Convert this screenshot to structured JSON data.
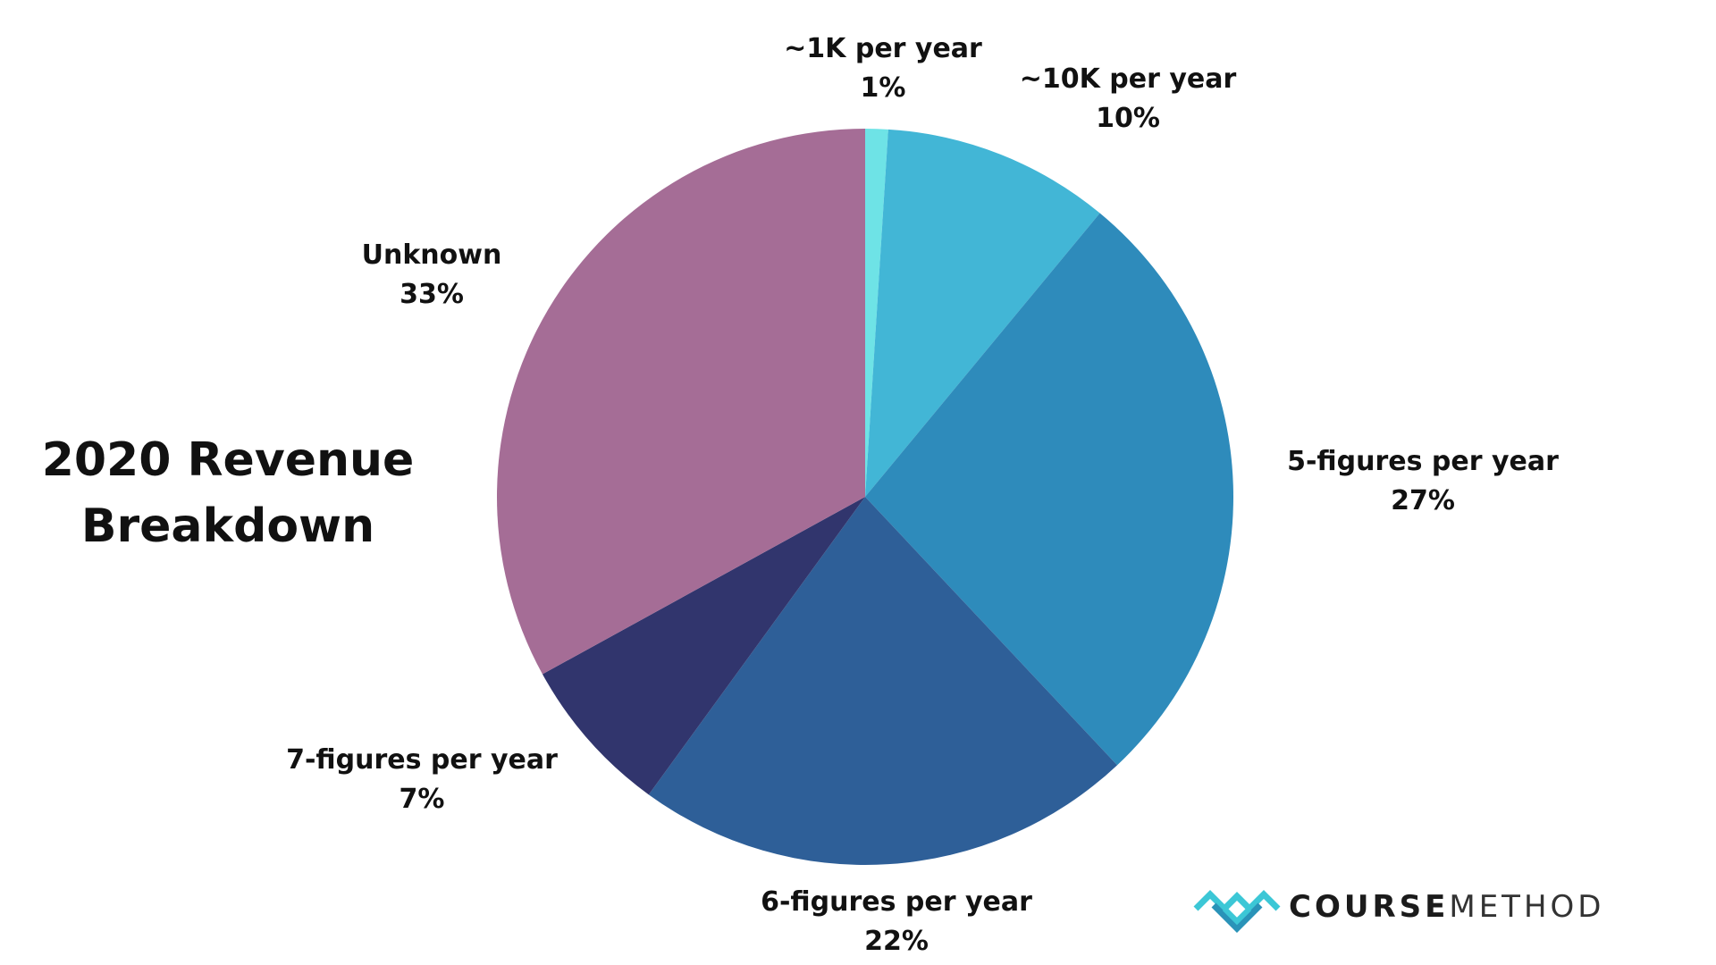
{
  "title": {
    "line1": "2020 Revenue",
    "line2": "Breakdown"
  },
  "brand": {
    "name_bold": "COURSE",
    "name_light": "METHOD",
    "mark_colors": [
      "#3cc7d6",
      "#2a93b8"
    ]
  },
  "chart_data": {
    "type": "pie",
    "title": "2020 Revenue Breakdown",
    "start_angle_deg": 0,
    "direction": "clockwise",
    "slices": [
      {
        "label": "~1K per year",
        "value": 1,
        "value_label": "1%",
        "color": "#6ee3e6"
      },
      {
        "label": "~10K per year",
        "value": 10,
        "value_label": "10%",
        "color": "#42b6d6"
      },
      {
        "label": "5-figures per year",
        "value": 27,
        "value_label": "27%",
        "color": "#2e8bbb"
      },
      {
        "label": "6-figures per year",
        "value": 22,
        "value_label": "22%",
        "color": "#2e5f98"
      },
      {
        "label": "7-figures per year",
        "value": 7,
        "value_label": "7%",
        "color": "#31356d"
      },
      {
        "label": "Unknown",
        "value": 33,
        "value_label": "33%",
        "color": "#a56d96"
      }
    ]
  }
}
